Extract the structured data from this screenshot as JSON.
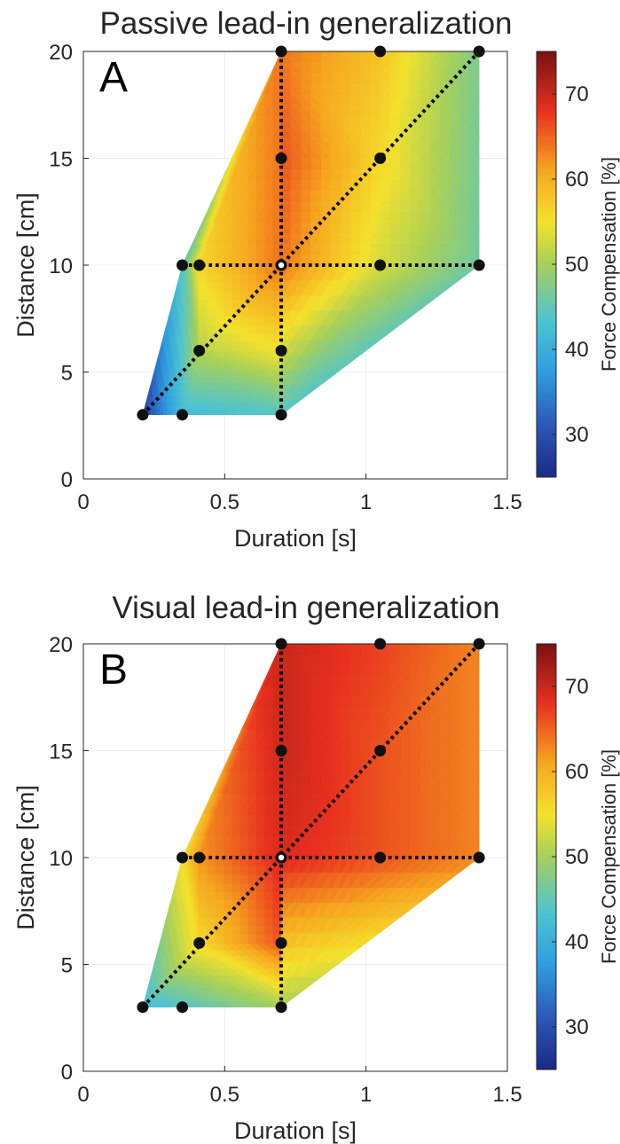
{
  "chart_data": [
    {
      "type": "heatmap",
      "panel_label": "A",
      "title": "Passive lead-in generalization",
      "xlabel": "Duration [s]",
      "ylabel": "Distance [cm]",
      "xlim": [
        0,
        1.5
      ],
      "ylim": [
        0,
        20
      ],
      "xticks": [
        "0",
        "0.5",
        "1",
        "1.5"
      ],
      "yticks": [
        "0",
        "5",
        "10",
        "15",
        "20"
      ],
      "colorbar": {
        "label": "Force Compensation [%]",
        "range": [
          25,
          75
        ],
        "ticks": [
          "30",
          "40",
          "50",
          "60",
          "70"
        ]
      },
      "center_point": [
        0.7,
        10
      ],
      "points": [
        {
          "duration": 0.21,
          "distance": 3,
          "value": 28
        },
        {
          "duration": 0.35,
          "distance": 3,
          "value": 42
        },
        {
          "duration": 0.7,
          "distance": 3,
          "value": 44
        },
        {
          "duration": 0.41,
          "distance": 6,
          "value": 51
        },
        {
          "duration": 0.7,
          "distance": 6,
          "value": 55
        },
        {
          "duration": 0.35,
          "distance": 10,
          "value": 44
        },
        {
          "duration": 0.41,
          "distance": 10,
          "value": 56
        },
        {
          "duration": 0.7,
          "distance": 10,
          "value": 64
        },
        {
          "duration": 1.05,
          "distance": 10,
          "value": 53
        },
        {
          "duration": 1.4,
          "distance": 10,
          "value": 46
        },
        {
          "duration": 0.7,
          "distance": 15,
          "value": 66
        },
        {
          "duration": 1.05,
          "distance": 15,
          "value": 56
        },
        {
          "duration": 0.7,
          "distance": 20,
          "value": 64
        },
        {
          "duration": 1.05,
          "distance": 20,
          "value": 58
        },
        {
          "duration": 1.4,
          "distance": 20,
          "value": 47
        }
      ]
    },
    {
      "type": "heatmap",
      "panel_label": "B",
      "title": "Visual lead-in generalization",
      "xlabel": "Duration [s]",
      "ylabel": "Distance [cm]",
      "xlim": [
        0,
        1.5
      ],
      "ylim": [
        0,
        20
      ],
      "xticks": [
        "0",
        "0.5",
        "1",
        "1.5"
      ],
      "yticks": [
        "0",
        "5",
        "10",
        "15",
        "20"
      ],
      "colorbar": {
        "label": "Force Compensation [%]",
        "range": [
          25,
          75
        ],
        "ticks": [
          "30",
          "40",
          "50",
          "60",
          "70"
        ]
      },
      "center_point": [
        0.7,
        10
      ],
      "points": [
        {
          "duration": 0.21,
          "distance": 3,
          "value": 42
        },
        {
          "duration": 0.35,
          "distance": 3,
          "value": 44
        },
        {
          "duration": 0.7,
          "distance": 3,
          "value": 50
        },
        {
          "duration": 0.41,
          "distance": 6,
          "value": 56
        },
        {
          "duration": 0.7,
          "distance": 6,
          "value": 66
        },
        {
          "duration": 0.35,
          "distance": 10,
          "value": 55
        },
        {
          "duration": 0.41,
          "distance": 10,
          "value": 62
        },
        {
          "duration": 0.7,
          "distance": 10,
          "value": 69
        },
        {
          "duration": 1.05,
          "distance": 10,
          "value": 66
        },
        {
          "duration": 1.4,
          "distance": 10,
          "value": 63
        },
        {
          "duration": 0.7,
          "distance": 15,
          "value": 70
        },
        {
          "duration": 1.05,
          "distance": 15,
          "value": 66
        },
        {
          "duration": 0.7,
          "distance": 20,
          "value": 70
        },
        {
          "duration": 1.05,
          "distance": 20,
          "value": 67
        },
        {
          "duration": 1.4,
          "distance": 20,
          "value": 63
        }
      ]
    }
  ]
}
